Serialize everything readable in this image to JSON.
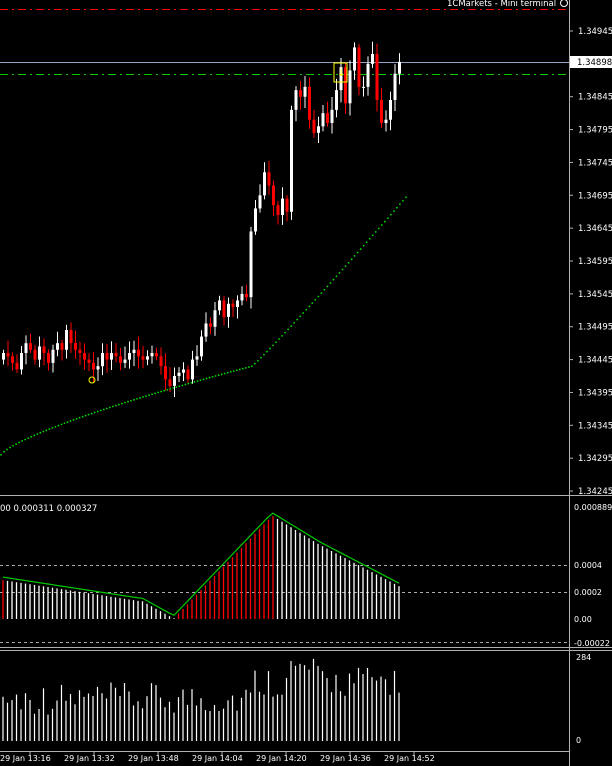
{
  "terminal": {
    "title": "1CMarkets - Mini terminal"
  },
  "price_axis": {
    "labels": [
      "1.34945",
      "1.34895",
      "1.34845",
      "1.34795",
      "1.34745",
      "1.34695",
      "1.34645",
      "1.34595",
      "1.34545",
      "1.34495",
      "1.34445",
      "1.34395",
      "1.34345",
      "1.34295",
      "1.34245"
    ],
    "current_price": "1.34898"
  },
  "macd": {
    "params_text": "00 0.000311 0.000327",
    "axis_labels": [
      "0.000889",
      "0.0004",
      "0.0002",
      "0.00",
      "-0.00022"
    ]
  },
  "volume": {
    "axis_labels": [
      "284",
      "0"
    ]
  },
  "time_axis": {
    "labels": [
      "29 Jan 13:16",
      "29 Jan 13:32",
      "29 Jan 13:48",
      "29 Jan 14:04",
      "29 Jan 14:20",
      "29 Jan 14:36",
      "29 Jan 14:52"
    ]
  },
  "colors": {
    "bull": "#ffffff",
    "bear": "#ff0000",
    "ma": "#00dd00",
    "signal": "#00cc00",
    "bid_line": "#8fa6c8",
    "ask_line": "#00cc00",
    "top_line": "#ff0000",
    "marker": "#ffff00"
  },
  "chart_data": {
    "type": "candlestick",
    "price_range": [
      1.34235,
      1.34985
    ],
    "close_path": [
      1.34455,
      1.3445,
      1.3444,
      1.3443,
      1.34455,
      1.3447,
      1.3446,
      1.34445,
      1.34465,
      1.34455,
      1.3444,
      1.3446,
      1.3447,
      1.3446,
      1.3449,
      1.3447,
      1.3446,
      1.34455,
      1.34445,
      1.3444,
      1.3443,
      1.34435,
      1.34455,
      1.34445,
      1.34455,
      1.3445,
      1.3444,
      1.34445,
      1.34455,
      1.3446,
      1.3445,
      1.34445,
      1.3445,
      1.34455,
      1.3445,
      1.34435,
      1.34415,
      1.34405,
      1.3442,
      1.34425,
      1.3443,
      1.34415,
      1.34445,
      1.3445,
      1.3448,
      1.345,
      1.34495,
      1.3452,
      1.34535,
      1.3451,
      1.3453,
      1.34525,
      1.34535,
      1.34545,
      1.3454,
      1.3464,
      1.34675,
      1.34695,
      1.3473,
      1.3471,
      1.3468,
      1.34665,
      1.3469,
      1.3467,
      1.34825,
      1.34855,
      1.34845,
      1.3486,
      1.3481,
      1.3479,
      1.348,
      1.3482,
      1.34805,
      1.34825,
      1.34855,
      1.3489,
      1.34835,
      1.34885,
      1.3492,
      1.3486,
      1.3486,
      1.34895,
      1.3491,
      1.3484,
      1.34805,
      1.3481,
      1.3484,
      1.3488,
      1.34898
    ],
    "ma_line": {
      "start": 1.343,
      "end": 1.34692
    },
    "macd_histogram_max": 0.000889,
    "volume_max": 284
  }
}
